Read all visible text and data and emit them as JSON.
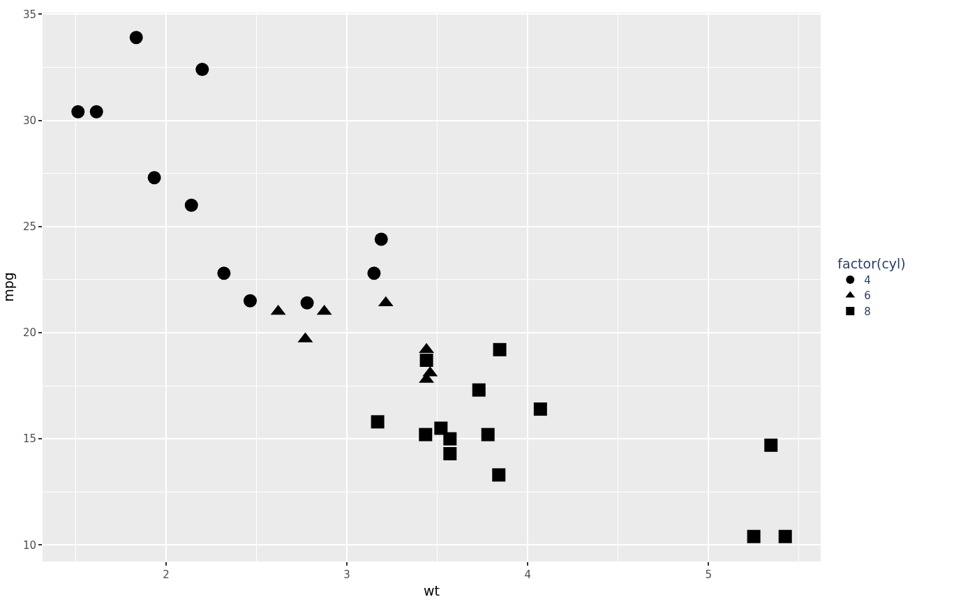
{
  "chart_data": {
    "type": "scatter",
    "xlabel": "wt",
    "ylabel": "mpg",
    "legend_title": "factor(cyl)",
    "legend": "right",
    "grid": true,
    "xlim": [
      1.317,
      5.62
    ],
    "xticks": [
      2,
      3,
      4,
      5
    ],
    "ylim": [
      9.225,
      35.075
    ],
    "yticks": [
      10,
      15,
      20,
      25,
      30,
      35
    ],
    "series": [
      {
        "name": "4",
        "color": "#000000",
        "marker": "circle",
        "x": [
          2.32,
          3.19,
          3.15,
          2.2,
          1.615,
          1.835,
          2.465,
          1.935,
          2.14,
          1.513,
          2.78
        ],
        "values": [
          22.8,
          24.4,
          22.8,
          32.4,
          30.4,
          33.9,
          21.5,
          27.3,
          26.0,
          30.4,
          21.4
        ]
      },
      {
        "name": "6",
        "color": "#000000",
        "marker": "triangle",
        "x": [
          2.62,
          2.875,
          3.215,
          3.46,
          3.44,
          3.44,
          2.77
        ],
        "values": [
          21.0,
          21.0,
          21.4,
          18.1,
          19.2,
          17.8,
          19.7
        ]
      },
      {
        "name": "8",
        "color": "#000000",
        "marker": "square",
        "x": [
          3.44,
          3.57,
          4.07,
          3.73,
          3.78,
          5.25,
          5.424,
          5.345,
          3.52,
          3.435,
          3.84,
          3.845,
          3.17,
          3.57
        ],
        "values": [
          18.7,
          14.3,
          16.4,
          17.3,
          15.2,
          10.4,
          10.4,
          14.7,
          15.5,
          15.2,
          13.3,
          19.2,
          15.8,
          15.0
        ]
      }
    ]
  }
}
